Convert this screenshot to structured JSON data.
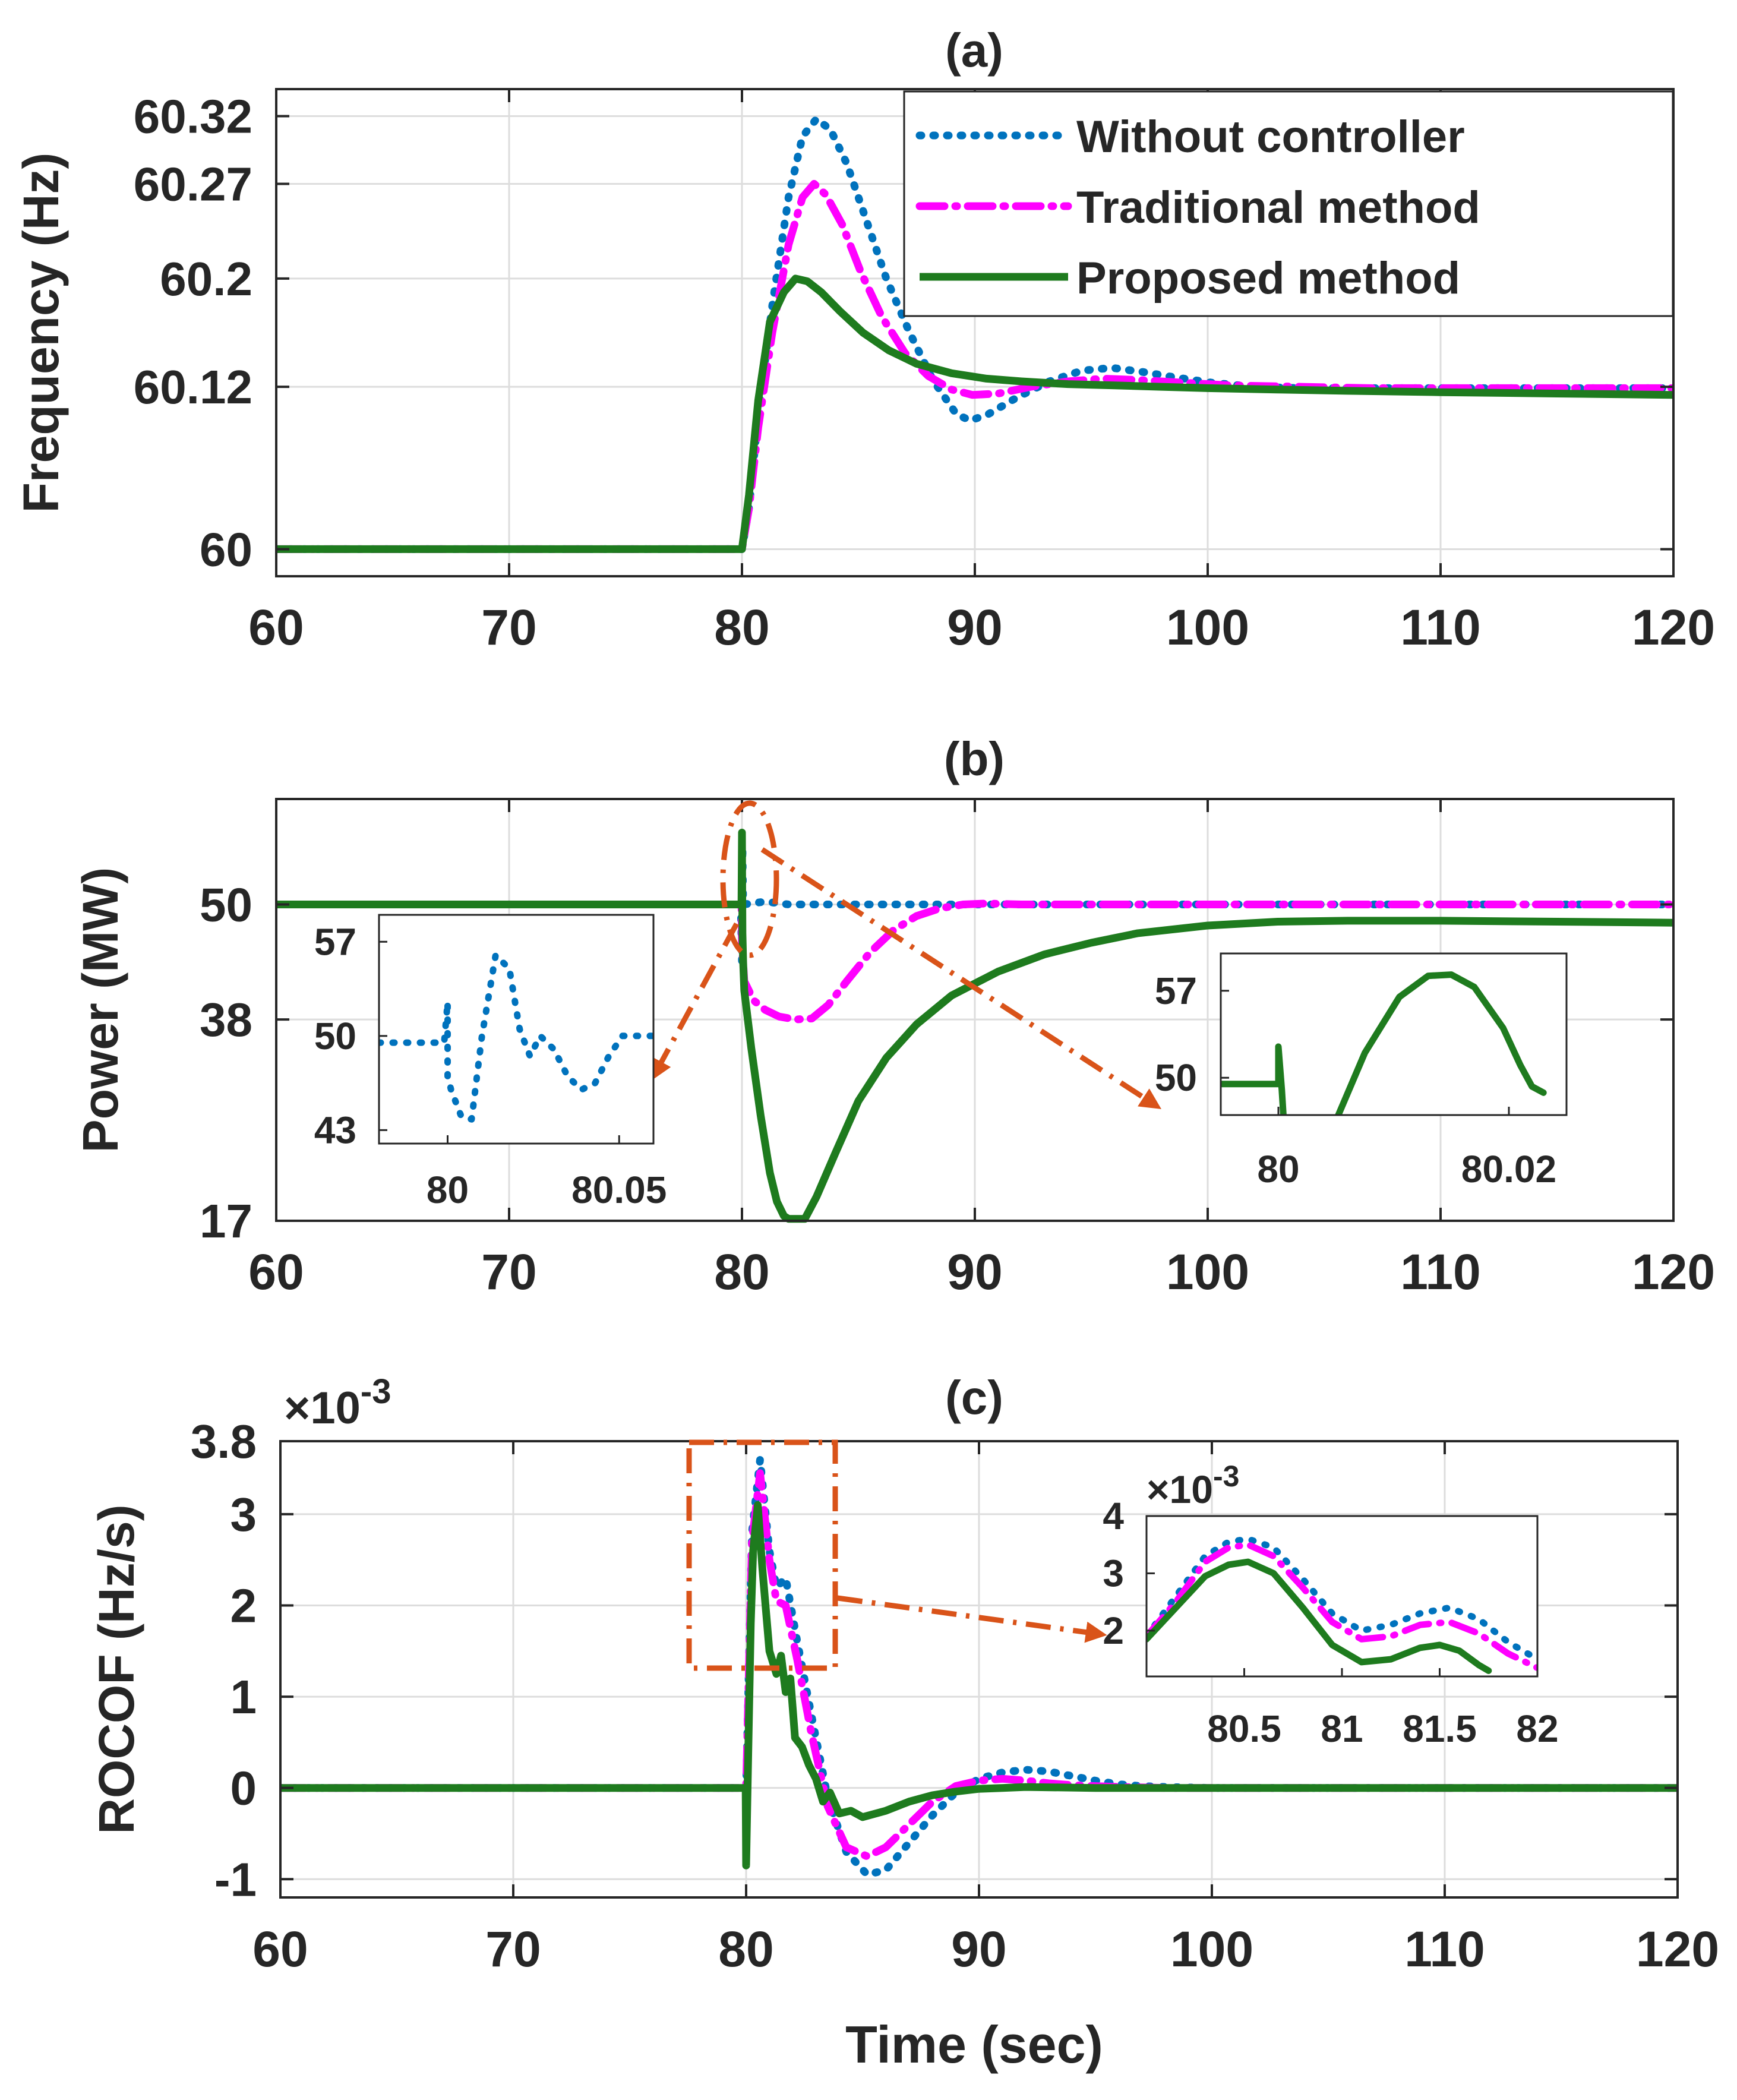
{
  "colors": {
    "without": "#0072BD",
    "traditional": "#FF00FF",
    "proposed": "#1E7B1E",
    "annotation": "#D95319",
    "grid": "#DDDDDD",
    "axis": "#262626"
  },
  "chart_data": [
    {
      "id": "a",
      "type": "line",
      "title": "(a)",
      "xlabel": "",
      "ylabel": "Frequency (Hz)",
      "xlim": [
        60,
        120
      ],
      "ylim": [
        59.98,
        60.34
      ],
      "xticks": [
        60,
        70,
        80,
        90,
        100,
        110,
        120
      ],
      "xtick_labels": [
        "60",
        "70",
        "80",
        "90",
        "100",
        "110",
        "120"
      ],
      "yticks": [
        60,
        60.12,
        60.2,
        60.27,
        60.32
      ],
      "ytick_labels": [
        "60",
        "60.12",
        "60.2",
        "60.27",
        "60.32"
      ],
      "grid": true,
      "legend": "top-right",
      "series": [
        {
          "name": "Without controller",
          "style": "dotted",
          "color": "without",
          "x": [
            60,
            80,
            80.3,
            80.7,
            81.3,
            82,
            82.6,
            83.2,
            83.8,
            84.5,
            85.3,
            86.2,
            87.2,
            88.2,
            89.2,
            89.8,
            90.6,
            91.8,
            93.2,
            94.6,
            95.9,
            97.2,
            98.6,
            100.2,
            102,
            104,
            107,
            110,
            113,
            116,
            120
          ],
          "y": [
            60,
            60,
            60.03,
            60.1,
            60.18,
            60.26,
            60.305,
            60.318,
            60.31,
            60.285,
            60.245,
            60.2,
            60.16,
            60.125,
            60.1,
            60.095,
            60.1,
            60.112,
            60.124,
            60.132,
            60.134,
            60.131,
            60.127,
            60.123,
            60.12,
            60.119,
            60.119,
            60.119,
            60.119,
            60.119,
            60.119
          ]
        },
        {
          "name": "Traditional method",
          "style": "dashdot",
          "color": "traditional",
          "x": [
            60,
            80,
            80.3,
            80.7,
            81.3,
            82,
            82.6,
            83.1,
            83.6,
            84.3,
            85.1,
            86,
            87,
            88,
            89,
            89.9,
            91,
            92.4,
            94,
            95.5,
            97,
            99,
            101,
            104,
            107,
            110,
            113,
            116,
            120
          ],
          "y": [
            60,
            60,
            60.03,
            60.09,
            60.16,
            60.225,
            60.26,
            60.27,
            60.262,
            60.24,
            60.205,
            60.172,
            60.145,
            60.128,
            60.118,
            60.114,
            60.115,
            60.12,
            60.124,
            60.126,
            60.125,
            60.123,
            60.121,
            60.12,
            60.119,
            60.119,
            60.119,
            60.119,
            60.119
          ]
        },
        {
          "name": "Proposed method",
          "style": "solid",
          "color": "proposed",
          "x": [
            60,
            80,
            80.3,
            80.7,
            81.2,
            81.8,
            82.3,
            82.8,
            83.4,
            84.2,
            85.2,
            86.3,
            87.5,
            89,
            90.5,
            92,
            94,
            96,
            98,
            100,
            103,
            106,
            110,
            115,
            120
          ],
          "y": [
            60,
            60,
            60.04,
            60.11,
            60.168,
            60.19,
            60.2,
            60.198,
            60.19,
            60.176,
            60.16,
            60.147,
            60.137,
            60.13,
            60.126,
            60.124,
            60.122,
            60.121,
            60.12,
            60.119,
            60.118,
            60.117,
            60.116,
            60.115,
            60.114
          ]
        }
      ]
    },
    {
      "id": "b",
      "type": "line",
      "title": "(b)",
      "xlabel": "",
      "ylabel": "Power (MW)",
      "xlim": [
        60,
        120
      ],
      "ylim": [
        17,
        61
      ],
      "xticks": [
        60,
        70,
        80,
        90,
        100,
        110,
        120
      ],
      "xtick_labels": [
        "60",
        "70",
        "80",
        "90",
        "100",
        "110",
        "120"
      ],
      "yticks": [
        17,
        38,
        50
      ],
      "ytick_labels": [
        "17",
        "38",
        "50"
      ],
      "grid": true,
      "series": [
        {
          "name": "Without controller",
          "style": "dotted",
          "color": "without",
          "x": [
            60,
            79.95,
            80,
            80.02,
            80.05,
            81,
            82,
            84,
            90,
            100,
            110,
            120
          ],
          "y": [
            50,
            50,
            44,
            56,
            50,
            50.3,
            50,
            50,
            50,
            50,
            50,
            50
          ]
        },
        {
          "name": "Traditional method",
          "style": "dashdot",
          "color": "traditional",
          "x": [
            60,
            79.98,
            80,
            80.1,
            80.5,
            81,
            81.6,
            82.3,
            83,
            83.7,
            84.5,
            85.5,
            86.5,
            87.5,
            88.5,
            89.5,
            90.5,
            92,
            95,
            100,
            110,
            120
          ],
          "y": [
            50,
            50,
            46,
            42,
            40,
            39,
            38.3,
            38,
            38.1,
            39.5,
            42,
            45,
            47.3,
            48.8,
            49.6,
            50,
            50.1,
            50,
            50,
            50,
            50,
            50
          ]
        },
        {
          "name": "Proposed method",
          "style": "solid",
          "color": "proposed",
          "x": [
            60,
            79.98,
            80,
            80.02,
            80.05,
            80.1,
            80.4,
            80.8,
            81.2,
            81.5,
            81.8,
            82,
            82.7,
            83.2,
            84,
            85,
            86.2,
            87.5,
            89,
            91,
            93,
            95,
            97,
            100,
            103,
            106,
            110,
            115,
            120
          ],
          "y": [
            50,
            50,
            57.5,
            47,
            44,
            41,
            35,
            28,
            22,
            19,
            17.5,
            17.2,
            17.2,
            19.5,
            24,
            29.5,
            34,
            37.5,
            40.5,
            43,
            44.8,
            46,
            47,
            47.8,
            48.2,
            48.3,
            48.3,
            48.2,
            48.1
          ]
        }
      ],
      "annotations": [
        {
          "type": "ellipse",
          "color": "annotation",
          "x": 80.15,
          "y": 52
        },
        {
          "type": "arrow",
          "color": "annotation",
          "from": [
            80,
            48
          ],
          "to": [
            75.5,
            37.2
          ]
        },
        {
          "type": "arrow",
          "color": "annotation",
          "from": [
            81,
            56
          ],
          "to": [
            97.5,
            36.5
          ]
        }
      ],
      "insets": [
        {
          "id": "b1",
          "xlim": [
            79.98,
            80.06
          ],
          "ylim": [
            42,
            59
          ],
          "xticks": [
            80,
            80.05
          ],
          "xtick_labels": [
            "80",
            "80.05"
          ],
          "yticks": [
            43,
            50,
            57
          ],
          "ytick_labels": [
            "43",
            "50",
            "57"
          ],
          "series": [
            {
              "name": "Without controller",
              "style": "dotted",
              "color": "without",
              "x": [
                79.98,
                79.999,
                80.0,
                80.0,
                80.001,
                80.004,
                80.007,
                80.01,
                80.014,
                80.018,
                80.021,
                80.024,
                80.027,
                80.031,
                80.035,
                80.039,
                80.043,
                80.047,
                80.051,
                80.056,
                80.06
              ],
              "y": [
                49.5,
                49.5,
                52.5,
                47,
                46,
                44,
                43.8,
                50,
                56,
                55,
                50.5,
                48.5,
                50,
                49,
                47,
                46,
                46.5,
                48.5,
                50,
                50,
                50
              ]
            }
          ]
        },
        {
          "id": "b2",
          "xlim": [
            79.995,
            80.025
          ],
          "ylim": [
            47,
            60
          ],
          "xticks": [
            80,
            80.02
          ],
          "xtick_labels": [
            "80",
            "80.02"
          ],
          "yticks": [
            50,
            57
          ],
          "ytick_labels": [
            "50",
            "57"
          ],
          "series": [
            {
              "name": "Proposed method",
              "style": "solid",
              "color": "proposed",
              "x": [
                79.995,
                80.0,
                80.0,
                80.0003,
                80.0005
              ],
              "y": [
                49.5,
                49.5,
                52.5,
                49,
                46
              ]
            },
            {
              "name": "Proposed method",
              "style": "solid",
              "color": "proposed",
              "x": [
                80.0052,
                80.0075,
                80.0105,
                80.013,
                80.015,
                80.017,
                80.0195,
                80.021,
                80.022,
                80.023
              ],
              "y": [
                47,
                52,
                56.5,
                58.2,
                58.3,
                57.3,
                54,
                51,
                49.3,
                48.8
              ]
            }
          ]
        }
      ]
    },
    {
      "id": "c",
      "type": "line",
      "title": "(c)",
      "xlabel": "Time (sec)",
      "ylabel": "ROCOF (Hz/s)",
      "exponent": "×10",
      "exponent_power": "-3",
      "xlim": [
        60,
        120
      ],
      "ylim": [
        -1.2,
        3.8
      ],
      "xticks": [
        60,
        70,
        80,
        90,
        100,
        110,
        120
      ],
      "xtick_labels": [
        "60",
        "70",
        "80",
        "90",
        "100",
        "110",
        "120"
      ],
      "yticks": [
        -1,
        0,
        1,
        2,
        3,
        3.8
      ],
      "ytick_labels": [
        "-1",
        "0",
        "1",
        "2",
        "3",
        "3.8"
      ],
      "grid": true,
      "series": [
        {
          "name": "Without controller",
          "style": "dotted",
          "color": "without",
          "x": [
            60,
            79.98,
            80,
            80.25,
            80.6,
            81,
            81.3,
            81.7,
            82.2,
            82.8,
            83.5,
            84.3,
            85.2,
            86,
            87,
            88,
            89,
            90,
            91,
            92,
            93,
            94,
            95,
            96,
            97,
            98,
            100,
            110,
            120
          ],
          "y": [
            0,
            0,
            0,
            2.8,
            3.6,
            2.6,
            2.2,
            2.3,
            1.6,
            0.8,
            -0.1,
            -0.7,
            -0.95,
            -0.9,
            -0.6,
            -0.3,
            -0.05,
            0.1,
            0.17,
            0.2,
            0.18,
            0.13,
            0.08,
            0.04,
            0.02,
            0.01,
            0,
            0,
            0
          ]
        },
        {
          "name": "Traditional method",
          "style": "dashdot",
          "color": "traditional",
          "x": [
            60,
            79.98,
            80,
            80.25,
            80.6,
            81,
            81.3,
            81.7,
            82.2,
            82.8,
            83.5,
            84.3,
            85.2,
            86,
            87,
            88,
            89,
            90,
            91,
            92,
            93,
            94,
            96,
            98,
            100,
            110,
            120
          ],
          "y": [
            0,
            0,
            0,
            2.7,
            3.45,
            2.5,
            2.05,
            2.0,
            1.4,
            0.6,
            -0.2,
            -0.65,
            -0.75,
            -0.65,
            -0.4,
            -0.15,
            0.02,
            0.08,
            0.1,
            0.08,
            0.05,
            0.03,
            0.01,
            0,
            0,
            0,
            0
          ]
        },
        {
          "name": "Proposed method",
          "style": "solid",
          "color": "proposed",
          "x": [
            60,
            79.98,
            80,
            80.1,
            80.2,
            80.3,
            80.5,
            80.7,
            81,
            81.3,
            81.5,
            81.7,
            81.9,
            82.1,
            82.4,
            82.7,
            83,
            83.3,
            83.6,
            84,
            84.5,
            85,
            86,
            87,
            88,
            89,
            90,
            91,
            92,
            95,
            100,
            110,
            120
          ],
          "y": [
            0,
            0,
            -0.85,
            0.5,
            1.8,
            2.6,
            3.1,
            2.4,
            1.5,
            1.25,
            1.45,
            1.05,
            1.2,
            0.55,
            0.45,
            0.25,
            0.1,
            -0.15,
            -0.05,
            -0.28,
            -0.25,
            -0.32,
            -0.25,
            -0.15,
            -0.08,
            -0.04,
            -0.01,
            0,
            0.01,
            0,
            0,
            0,
            0
          ]
        }
      ],
      "annotations": [
        {
          "type": "dashed-rect",
          "color": "annotation",
          "x": [
            77.5,
            84
          ],
          "y": [
            1.3,
            3.8
          ]
        },
        {
          "type": "arrow",
          "color": "annotation",
          "from": [
            84.3,
            2
          ],
          "to": [
            97.5,
            1.8
          ]
        }
      ],
      "insets": [
        {
          "id": "c1",
          "xlim": [
            80,
            82
          ],
          "ylim": [
            1.2,
            4
          ],
          "exponent": "×10",
          "exponent_power": "-3",
          "xticks": [
            80.5,
            81,
            81.5,
            82
          ],
          "xtick_labels": [
            "80.5",
            "81",
            "81.5",
            "82"
          ],
          "yticks": [
            2,
            3,
            4
          ],
          "ytick_labels": [
            "2",
            "3",
            "4"
          ],
          "series": [
            {
              "name": "Without controller",
              "style": "dotted",
              "color": "without",
              "x": [
                80,
                80.15,
                80.3,
                80.42,
                80.52,
                80.65,
                80.8,
                80.95,
                81.1,
                81.25,
                81.4,
                81.55,
                81.7,
                81.85,
                82
              ],
              "y": [
                1.9,
                2.6,
                3.3,
                3.55,
                3.6,
                3.45,
                2.9,
                2.3,
                2.0,
                2.1,
                2.3,
                2.4,
                2.2,
                1.8,
                1.5
              ]
            },
            {
              "name": "Traditional method",
              "style": "dashdot",
              "color": "traditional",
              "x": [
                80,
                80.15,
                80.3,
                80.42,
                80.52,
                80.65,
                80.8,
                80.95,
                81.1,
                81.25,
                81.4,
                81.55,
                81.7,
                81.85,
                82
              ],
              "y": [
                1.9,
                2.5,
                3.2,
                3.45,
                3.5,
                3.3,
                2.75,
                2.15,
                1.85,
                1.9,
                2.1,
                2.15,
                1.95,
                1.6,
                1.35
              ]
            },
            {
              "name": "Proposed method",
              "style": "solid",
              "color": "proposed",
              "x": [
                80,
                80.15,
                80.3,
                80.42,
                80.52,
                80.65,
                80.8,
                80.95,
                81.1,
                81.25,
                81.4,
                81.5,
                81.6,
                81.7,
                81.75
              ],
              "y": [
                1.85,
                2.4,
                2.95,
                3.15,
                3.2,
                3.0,
                2.4,
                1.75,
                1.45,
                1.5,
                1.7,
                1.75,
                1.65,
                1.4,
                1.3
              ]
            }
          ]
        }
      ]
    }
  ]
}
